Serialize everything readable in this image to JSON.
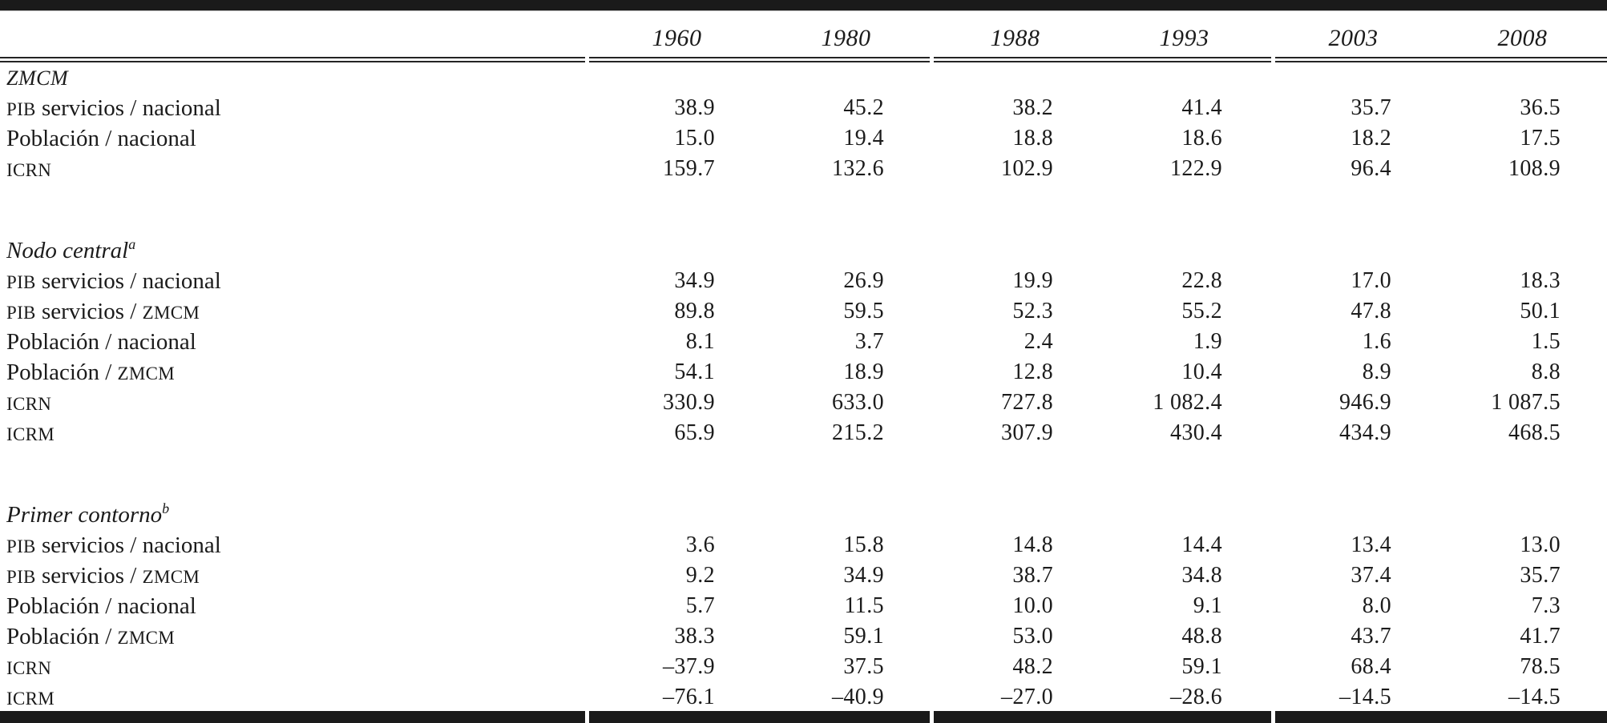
{
  "page": {
    "background": "#ffffff",
    "text_color": "#1b1b1b",
    "rule_color": "#1a1a1a"
  },
  "table": {
    "columns": [
      "1960",
      "1980",
      "1988",
      "1993",
      "2003",
      "2008"
    ],
    "sections": [
      {
        "title": "ZMCM",
        "sup": "",
        "title_style": "caps",
        "rows": [
          {
            "label": [
              [
                "sc",
                "PIB"
              ],
              [
                "n",
                " servicios / nacional"
              ]
            ],
            "values": [
              "38.9",
              "45.2",
              "38.2",
              "41.4",
              "35.7",
              "36.5"
            ]
          },
          {
            "label": [
              [
                "n",
                "Población / nacional"
              ]
            ],
            "values": [
              "15.0",
              "19.4",
              "18.8",
              "18.6",
              "18.2",
              "17.5"
            ]
          },
          {
            "label": [
              [
                "sc",
                "ICRN"
              ]
            ],
            "values": [
              "159.7",
              "132.6",
              "102.9",
              "122.9",
              "96.4",
              "108.9"
            ]
          }
        ]
      },
      {
        "title": "Nodo central",
        "sup": "a",
        "title_style": "italic",
        "rows": [
          {
            "label": [
              [
                "sc",
                "PIB"
              ],
              [
                "n",
                " servicios / nacional"
              ]
            ],
            "values": [
              "34.9",
              "26.9",
              "19.9",
              "22.8",
              "17.0",
              "18.3"
            ]
          },
          {
            "label": [
              [
                "sc",
                "PIB"
              ],
              [
                "n",
                " servicios / "
              ],
              [
                "sc",
                "ZMCM"
              ]
            ],
            "values": [
              "89.8",
              "59.5",
              "52.3",
              "55.2",
              "47.8",
              "50.1"
            ]
          },
          {
            "label": [
              [
                "n",
                "Población / nacional"
              ]
            ],
            "values": [
              "8.1",
              "3.7",
              "2.4",
              "1.9",
              "1.6",
              "1.5"
            ]
          },
          {
            "label": [
              [
                "n",
                "Población / "
              ],
              [
                "sc",
                "ZMCM"
              ]
            ],
            "values": [
              "54.1",
              "18.9",
              "12.8",
              "10.4",
              "8.9",
              "8.8"
            ]
          },
          {
            "label": [
              [
                "sc",
                "ICRN"
              ]
            ],
            "values": [
              "330.9",
              "633.0",
              "727.8",
              "1 082.4",
              "946.9",
              "1 087.5"
            ]
          },
          {
            "label": [
              [
                "sc",
                "ICRM"
              ]
            ],
            "values": [
              "65.9",
              "215.2",
              "307.9",
              "430.4",
              "434.9",
              "468.5"
            ]
          }
        ]
      },
      {
        "title": "Primer contorno",
        "sup": "b",
        "title_style": "italic",
        "rows": [
          {
            "label": [
              [
                "sc",
                "PIB"
              ],
              [
                "n",
                " servicios / nacional"
              ]
            ],
            "values": [
              "3.6",
              "15.8",
              "14.8",
              "14.4",
              "13.4",
              "13.0"
            ]
          },
          {
            "label": [
              [
                "sc",
                "PIB"
              ],
              [
                "n",
                " servicios / "
              ],
              [
                "sc",
                "ZMCM"
              ]
            ],
            "values": [
              "9.2",
              "34.9",
              "38.7",
              "34.8",
              "37.4",
              "35.7"
            ]
          },
          {
            "label": [
              [
                "n",
                "Población / nacional"
              ]
            ],
            "values": [
              "5.7",
              "11.5",
              "10.0",
              "9.1",
              "8.0",
              "7.3"
            ]
          },
          {
            "label": [
              [
                "n",
                "Población / "
              ],
              [
                "sc",
                "ZMCM"
              ]
            ],
            "values": [
              "38.3",
              "59.1",
              "53.0",
              "48.8",
              "43.7",
              "41.7"
            ]
          },
          {
            "label": [
              [
                "sc",
                "ICRN"
              ]
            ],
            "values": [
              "–37.9",
              "37.5",
              "48.2",
              "59.1",
              "68.4",
              "78.5"
            ]
          },
          {
            "label": [
              [
                "sc",
                "ICRM"
              ]
            ],
            "values": [
              "–76.1",
              "–40.9",
              "–27.0",
              "–28.6",
              "–14.5",
              "–14.5"
            ]
          }
        ]
      }
    ]
  }
}
